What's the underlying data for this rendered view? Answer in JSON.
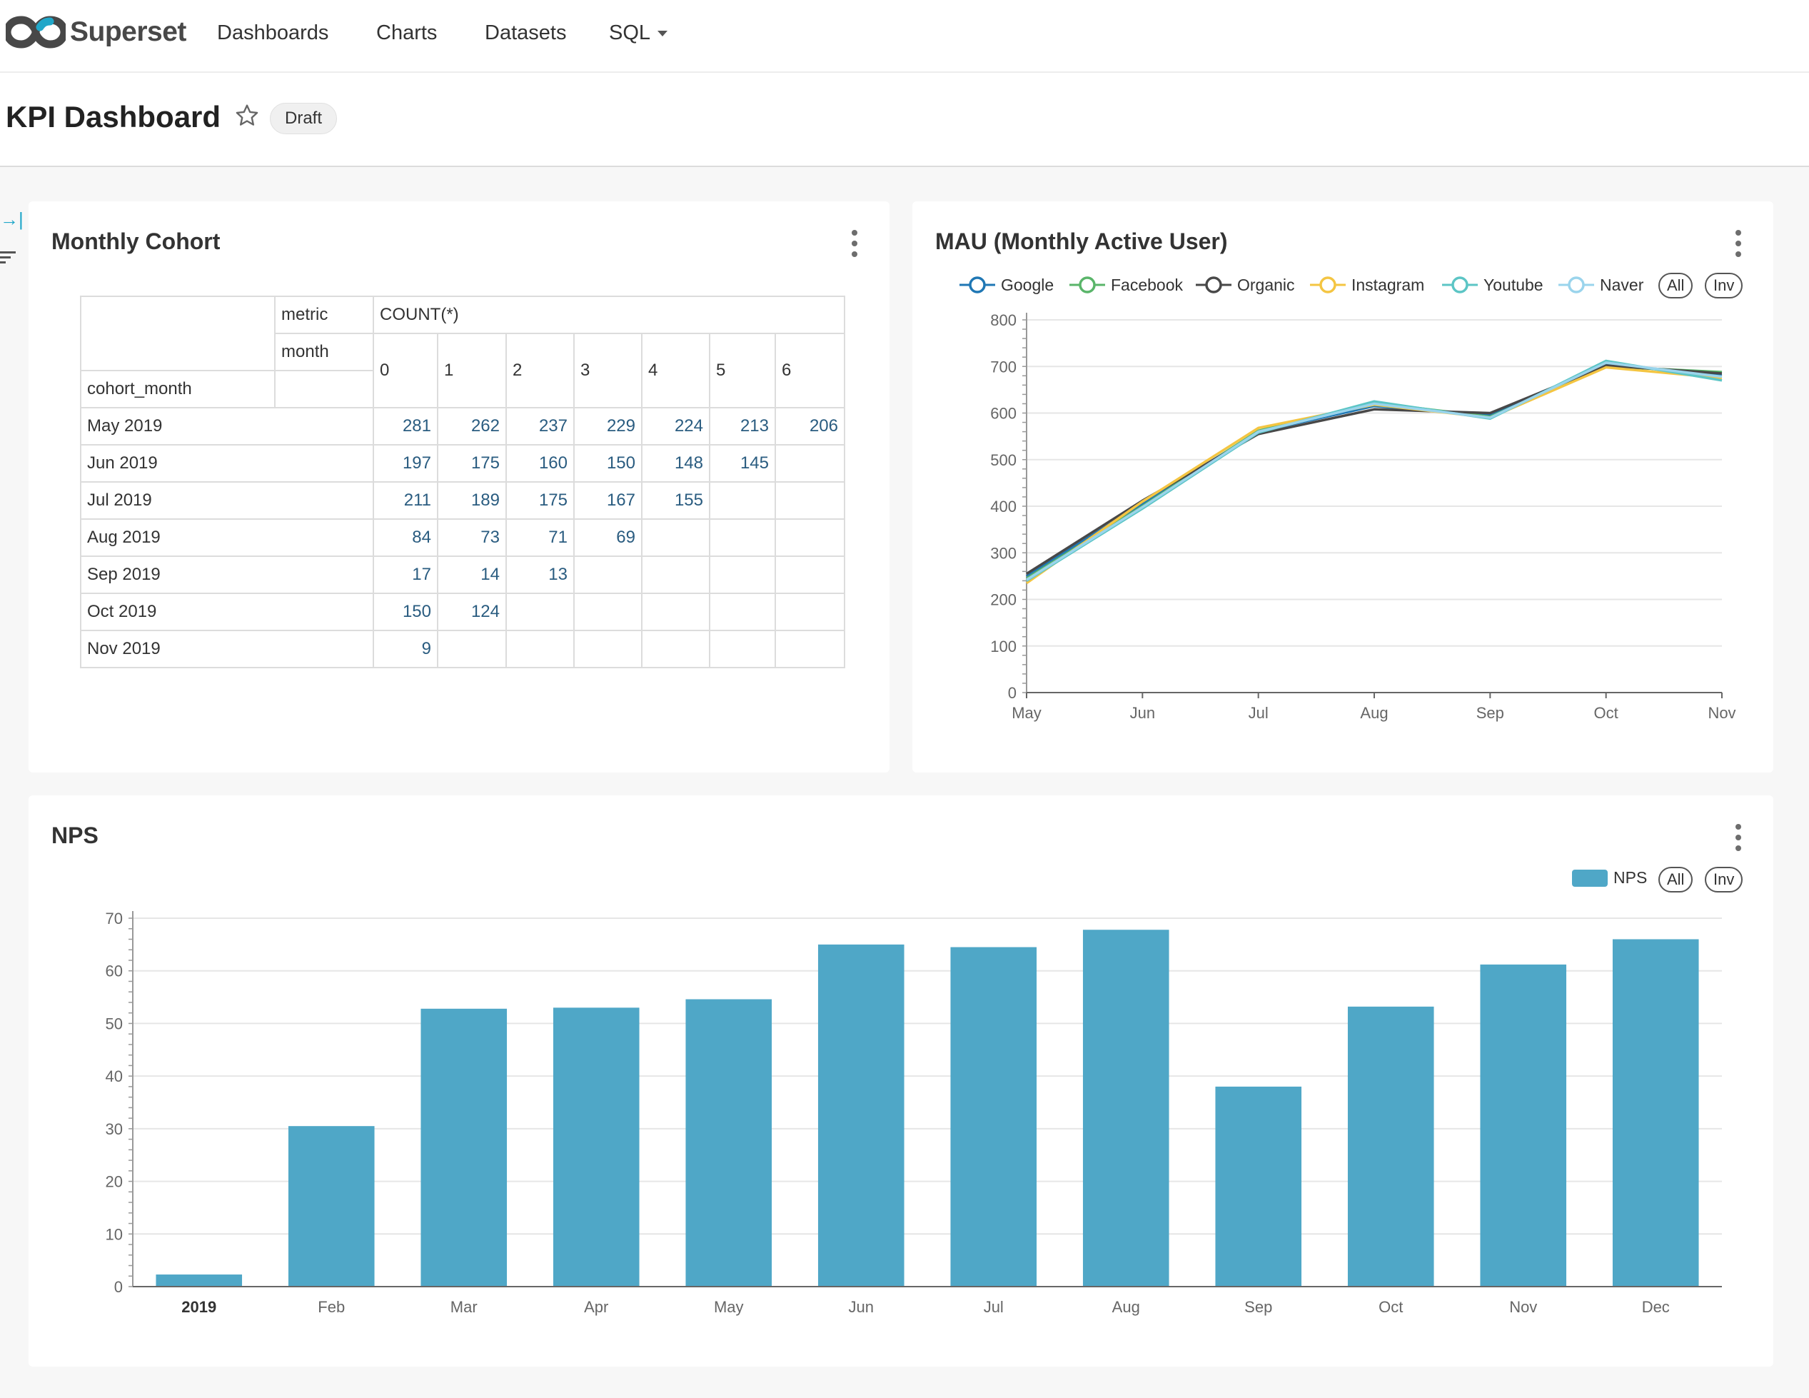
{
  "navbar": {
    "brand": "Superset",
    "items": [
      {
        "label": "Dashboards"
      },
      {
        "label": "Charts"
      },
      {
        "label": "Datasets"
      },
      {
        "label": "SQL"
      }
    ]
  },
  "header": {
    "title": "KPI Dashboard",
    "status": "Draft"
  },
  "cohort": {
    "title": "Monthly Cohort",
    "metric_label": "metric",
    "metric_value": "COUNT(*)",
    "month_label": "month",
    "row_label": "cohort_month",
    "columns": [
      "0",
      "1",
      "2",
      "3",
      "4",
      "5",
      "6"
    ],
    "rows": [
      {
        "month": "May 2019",
        "values": [
          "281",
          "262",
          "237",
          "229",
          "224",
          "213",
          "206"
        ]
      },
      {
        "month": "Jun 2019",
        "values": [
          "197",
          "175",
          "160",
          "150",
          "148",
          "145",
          ""
        ]
      },
      {
        "month": "Jul 2019",
        "values": [
          "211",
          "189",
          "175",
          "167",
          "155",
          "",
          ""
        ]
      },
      {
        "month": "Aug 2019",
        "values": [
          "84",
          "73",
          "71",
          "69",
          "",
          "",
          ""
        ]
      },
      {
        "month": "Sep 2019",
        "values": [
          "17",
          "14",
          "13",
          "",
          "",
          "",
          ""
        ]
      },
      {
        "month": "Oct 2019",
        "values": [
          "150",
          "124",
          "",
          "",
          "",
          "",
          ""
        ]
      },
      {
        "month": "Nov 2019",
        "values": [
          "9",
          "",
          "",
          "",
          "",
          "",
          ""
        ]
      }
    ]
  },
  "legend_buttons": {
    "all": "All",
    "inv": "Inv"
  },
  "chart_data": [
    {
      "type": "line",
      "title": "MAU (Monthly Active User)",
      "categories": [
        "May",
        "Jun",
        "Jul",
        "Aug",
        "Sep",
        "Oct",
        "Nov"
      ],
      "ylim": [
        0,
        800
      ],
      "yticks": [
        0,
        100,
        200,
        300,
        400,
        500,
        600,
        700,
        800
      ],
      "grid": true,
      "legend_position": "top-right",
      "series": [
        {
          "name": "Google",
          "color": "#1f77b4",
          "values": [
            250,
            405,
            560,
            615,
            595,
            705,
            680
          ]
        },
        {
          "name": "Facebook",
          "color": "#5ab56a",
          "values": [
            245,
            400,
            562,
            622,
            592,
            700,
            688
          ]
        },
        {
          "name": "Organic",
          "color": "#484848",
          "values": [
            255,
            412,
            555,
            608,
            600,
            702,
            685
          ]
        },
        {
          "name": "Instagram",
          "color": "#f4c542",
          "values": [
            235,
            410,
            568,
            618,
            590,
            698,
            675
          ]
        },
        {
          "name": "Youtube",
          "color": "#5cc5c5",
          "values": [
            240,
            395,
            558,
            625,
            588,
            712,
            670
          ]
        },
        {
          "name": "Naver",
          "color": "#9ad4ec",
          "values": [
            242,
            398,
            560,
            620,
            590,
            708,
            678
          ]
        }
      ]
    },
    {
      "type": "bar",
      "title": "NPS",
      "categories": [
        "2019",
        "Feb",
        "Mar",
        "Apr",
        "May",
        "Jun",
        "Jul",
        "Aug",
        "Sep",
        "Oct",
        "Nov",
        "Dec"
      ],
      "ylim": [
        0,
        70
      ],
      "yticks": [
        0,
        10,
        20,
        30,
        40,
        50,
        60,
        70
      ],
      "grid": true,
      "legend_position": "top-right",
      "series": [
        {
          "name": "NPS",
          "color": "#4fa7c7",
          "values": [
            2.3,
            30.5,
            52.8,
            53,
            54.6,
            65,
            64.5,
            67.8,
            38,
            53.2,
            61.2,
            66
          ]
        }
      ]
    }
  ]
}
